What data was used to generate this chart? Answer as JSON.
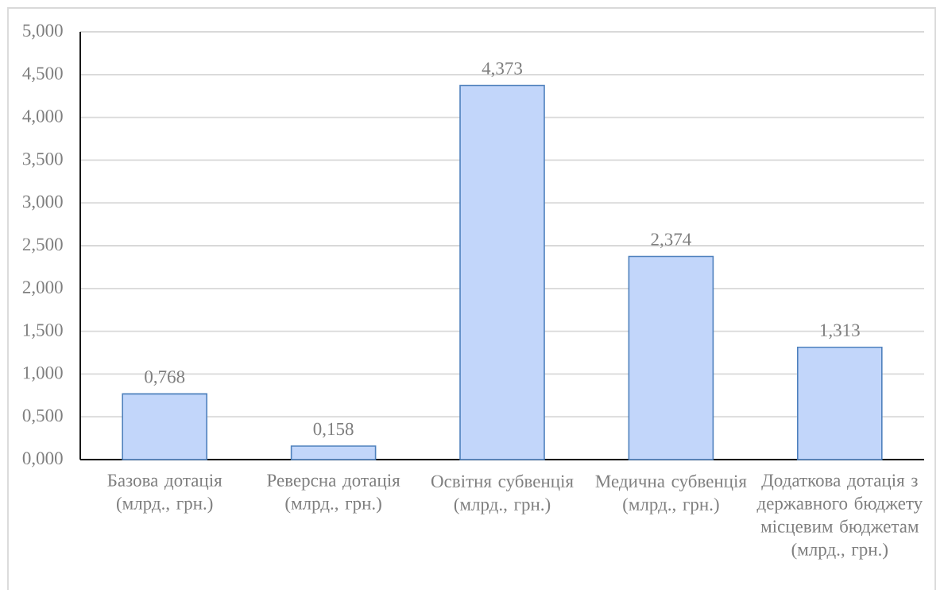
{
  "chart_data": {
    "type": "bar",
    "categories": [
      "Базова дотація (млрд., грн.)",
      "Реверсна дотація (млрд., грн.)",
      "Освітня субвенція (млрд., грн.)",
      "Медична субвенція (млрд., грн.)",
      "Додаткова дотація з державного бюджету місцевим бюджетам (млрд., грн.)"
    ],
    "values": [
      0.768,
      0.158,
      4.373,
      2.374,
      1.313
    ],
    "value_labels": [
      "0,768",
      "0,158",
      "4,373",
      "2,374",
      "1,313"
    ],
    "color": "#c2d6fa",
    "ylim": [
      0,
      5
    ],
    "yticks": [
      {
        "value": 0,
        "label": "0,000"
      },
      {
        "value": 0.5,
        "label": "0,500"
      },
      {
        "value": 1,
        "label": "1,000"
      },
      {
        "value": 1.5,
        "label": "1,500"
      },
      {
        "value": 2,
        "label": "2,000"
      },
      {
        "value": 2.5,
        "label": "2,500"
      },
      {
        "value": 3,
        "label": "3,000"
      },
      {
        "value": 3.5,
        "label": "3,500"
      },
      {
        "value": 4,
        "label": "4,000"
      },
      {
        "value": 4.5,
        "label": "4,500"
      },
      {
        "value": 5,
        "label": "5,000"
      }
    ],
    "grid": "y"
  }
}
